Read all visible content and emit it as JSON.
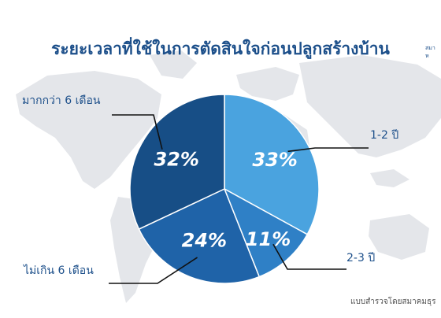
{
  "title": "ระยะเวลาที่ใช้ในการตัดสินใจก่อนปลูกสร้างบ้าน",
  "corner_text": [
    "สมา",
    "ห"
  ],
  "source_text": "แบบสำรวจโดยสมาคมธุร",
  "colors": {
    "title": "#1c4f8a",
    "label": "#1c4f8a",
    "map": "#e4e6ea",
    "slices": [
      "#4aa3df",
      "#2f80c6",
      "#1f63a8",
      "#174e86"
    ],
    "leader": "#111111"
  },
  "chart_data": {
    "type": "pie",
    "start_angle_deg": 0,
    "direction": "clockwise",
    "slices": [
      {
        "label": "1-2 ปี",
        "value": 33,
        "value_label": "33%"
      },
      {
        "label": "2-3 ปี",
        "value": 11,
        "value_label": "11%"
      },
      {
        "label": "ไม่เกิน 6 เดือน",
        "value": 24,
        "value_label": "24%"
      },
      {
        "label": "มากกว่า 6 เดือน",
        "value": 32,
        "value_label": "32%"
      }
    ]
  }
}
